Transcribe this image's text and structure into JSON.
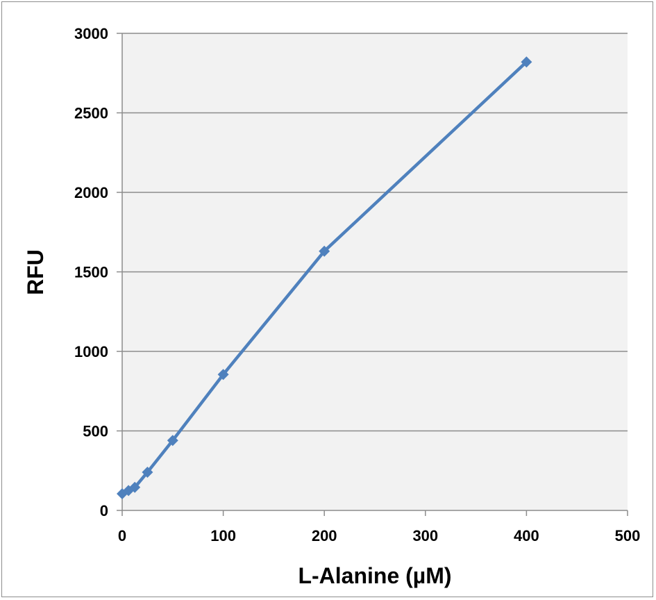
{
  "chart_data": {
    "type": "line",
    "title": "",
    "xlabel": "L-Alanine (µM)",
    "ylabel": "RFU",
    "xlim": [
      0,
      500
    ],
    "ylim": [
      0,
      3000
    ],
    "x_ticks": [
      0,
      100,
      200,
      300,
      400,
      500
    ],
    "y_ticks": [
      0,
      500,
      1000,
      1500,
      2000,
      2500,
      3000
    ],
    "x_tick_labels": [
      "0",
      "100",
      "200",
      "300",
      "400",
      "500"
    ],
    "y_tick_labels": [
      "0",
      "500",
      "1000",
      "1500",
      "2000",
      "2500",
      "3000"
    ],
    "grid": "horizontal",
    "legend": "none",
    "plot_background": "#f2f2f2",
    "series": [
      {
        "color": "#4f81bd",
        "marker": "diamond",
        "x": [
          0,
          6.25,
          12.5,
          25,
          50,
          100,
          200,
          400
        ],
        "y": [
          105,
          125,
          145,
          240,
          440,
          855,
          1630,
          2820
        ]
      }
    ]
  }
}
